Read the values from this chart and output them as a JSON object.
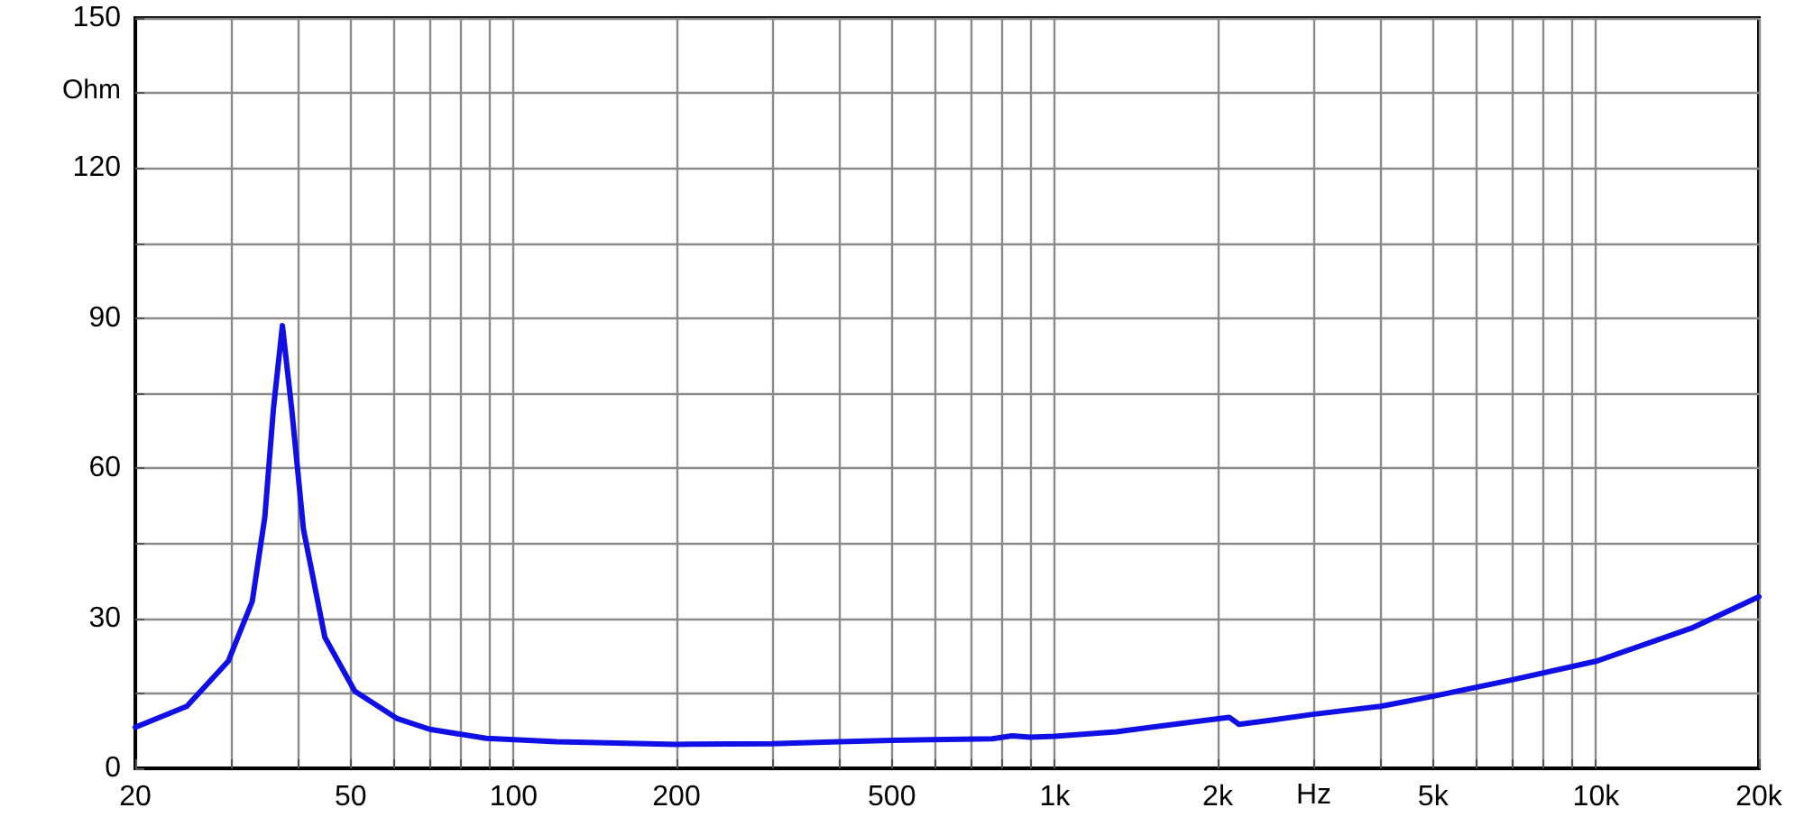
{
  "chart_data": {
    "type": "line",
    "xlabel": "Hz",
    "ylabel": "Ohm",
    "log": "x",
    "xlim": [
      20,
      20000
    ],
    "xticks": [
      20,
      {
        "value": 30,
        "label": null
      },
      {
        "value": 40,
        "label": null
      },
      50,
      {
        "value": 60,
        "label": null
      },
      {
        "value": 70,
        "label": null
      },
      {
        "value": 80,
        "label": null
      },
      {
        "value": 90,
        "label": null
      },
      100,
      200,
      {
        "value": 300,
        "label": null
      },
      {
        "value": 400,
        "label": null
      },
      500,
      {
        "value": 600,
        "label": null
      },
      {
        "value": 700,
        "label": null
      },
      {
        "value": 800,
        "label": null
      },
      {
        "value": 900,
        "label": null
      },
      {
        "value": 1000,
        "label": "1k"
      },
      {
        "value": 2000,
        "label": "2k"
      },
      {
        "value": 3000,
        "label": null
      },
      {
        "value": 4000,
        "label": null
      },
      {
        "value": 5000,
        "label": "5k"
      },
      {
        "value": 6000,
        "label": null
      },
      {
        "value": 7000,
        "label": null
      },
      {
        "value": 8000,
        "label": null
      },
      {
        "value": 9000,
        "label": null
      },
      {
        "value": 10000,
        "label": "10k"
      },
      {
        "value": 20000,
        "label": "20k"
      }
    ],
    "ylim": [
      0,
      150
    ],
    "yticks": [
      0,
      {
        "value": 15,
        "label": null
      },
      30,
      {
        "value": 45,
        "label": null
      },
      60,
      {
        "value": 75,
        "label": null
      },
      90,
      {
        "value": 105,
        "label": null
      },
      120,
      {
        "value": 135,
        "label": null
      },
      150
    ],
    "grid": true,
    "marker": "none",
    "line_style": "solid",
    "series": [
      {
        "color": "#0f0fe6",
        "x": [
          20,
          24.9,
          29.7,
          32.9,
          34.7,
          36.0,
          37.4,
          38.9,
          40.9,
          44.8,
          50.9,
          60.8,
          70,
          89,
          120,
          200,
          300,
          400,
          500,
          766,
          834,
          900,
          1000,
          1300,
          1660,
          1900,
          2100,
          2190,
          2500,
          3000,
          4000,
          5000,
          7000,
          10000,
          15000,
          20000
        ],
        "values": [
          8.2,
          12.4,
          21.4,
          33.4,
          50.2,
          71.9,
          88.5,
          71.9,
          47.8,
          26.2,
          15.4,
          10.0,
          7.8,
          6.0,
          5.3,
          4.8,
          4.9,
          5.3,
          5.6,
          5.9,
          6.5,
          6.2,
          6.4,
          7.3,
          8.8,
          9.6,
          10.2,
          8.8,
          9.6,
          10.8,
          12.4,
          14.4,
          17.7,
          21.4,
          28,
          34.3
        ]
      }
    ]
  }
}
